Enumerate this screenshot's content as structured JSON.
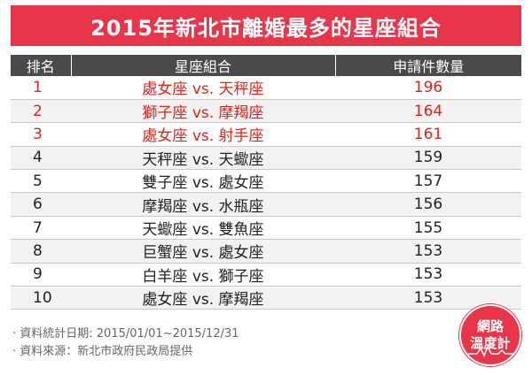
{
  "title": "2015年新北市離婚最多的星座組合",
  "table": {
    "headers": [
      "排名",
      "星座組合",
      "申請件數量"
    ],
    "rows": [
      {
        "rank": "1",
        "combo": "處女座 vs. 天秤座",
        "count": "196",
        "highlight": true
      },
      {
        "rank": "2",
        "combo": "獅子座 vs. 摩羯座",
        "count": "164",
        "highlight": true
      },
      {
        "rank": "3",
        "combo": "處女座 vs. 射手座",
        "count": "161",
        "highlight": true
      },
      {
        "rank": "4",
        "combo": "天秤座 vs. 天蠍座",
        "count": "159",
        "highlight": false
      },
      {
        "rank": "5",
        "combo": "雙子座 vs. 處女座",
        "count": "157",
        "highlight": false
      },
      {
        "rank": "6",
        "combo": "摩羯座 vs. 水瓶座",
        "count": "156",
        "highlight": false
      },
      {
        "rank": "7",
        "combo": "天蠍座 vs. 雙魚座",
        "count": "155",
        "highlight": false
      },
      {
        "rank": "8",
        "combo": "巨蟹座 vs. 處女座",
        "count": "153",
        "highlight": false
      },
      {
        "rank": "9",
        "combo": "白羊座 vs. 獅子座",
        "count": "153",
        "highlight": false
      },
      {
        "rank": "10",
        "combo": "處女座 vs. 摩羯座",
        "count": "153",
        "highlight": false
      }
    ]
  },
  "footnotes": [
    "· 資料統計日期: 2015/01/01~2015/12/31",
    "· 資料來源：新北市政府民政局提供"
  ],
  "logo": {
    "line1": "網路",
    "line2": "溫度計"
  },
  "colors": {
    "accent": "#e8354a",
    "header_bg": "#4a4a4a",
    "highlight_text": "#d9261c"
  }
}
